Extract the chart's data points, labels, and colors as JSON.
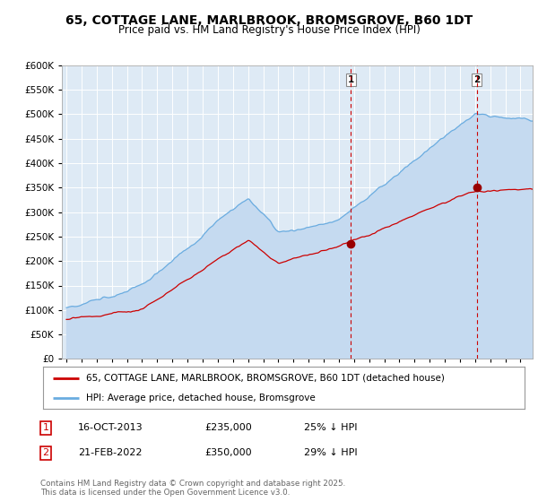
{
  "title": "65, COTTAGE LANE, MARLBROOK, BROMSGROVE, B60 1DT",
  "subtitle": "Price paid vs. HM Land Registry's House Price Index (HPI)",
  "ylim": [
    0,
    600000
  ],
  "yticks": [
    0,
    50000,
    100000,
    150000,
    200000,
    250000,
    300000,
    350000,
    400000,
    450000,
    500000,
    550000,
    600000
  ],
  "xlim_start": 1994.7,
  "xlim_end": 2025.8,
  "background_color": "#ffffff",
  "plot_bg_color": "#deeaf5",
  "grid_color": "#ffffff",
  "hpi_color": "#6aace0",
  "hpi_fill_color": "#c5daf0",
  "price_color": "#cc0000",
  "sale1_x": 2013.79,
  "sale1_y": 235000,
  "sale1_label": "1",
  "sale2_x": 2022.12,
  "sale2_y": 350000,
  "sale2_label": "2",
  "vline_color": "#cc0000",
  "legend_label1": "65, COTTAGE LANE, MARLBROOK, BROMSGROVE, B60 1DT (detached house)",
  "legend_label2": "HPI: Average price, detached house, Bromsgrove",
  "table_row1": [
    "1",
    "16-OCT-2013",
    "£235,000",
    "25% ↓ HPI"
  ],
  "table_row2": [
    "2",
    "21-FEB-2022",
    "£350,000",
    "29% ↓ HPI"
  ],
  "footer": "Contains HM Land Registry data © Crown copyright and database right 2025.\nThis data is licensed under the Open Government Licence v3.0.",
  "title_fontsize": 10,
  "subtitle_fontsize": 8.5
}
